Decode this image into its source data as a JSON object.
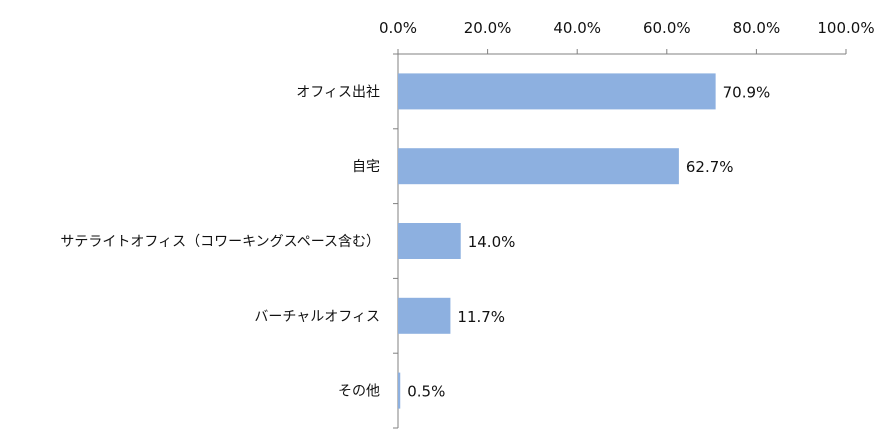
{
  "chart_data": {
    "type": "bar",
    "orientation": "horizontal",
    "categories": [
      "オフィス出社",
      "自宅",
      "サテライトオフィス（コワーキングスペース含む）",
      "バーチャルオフィス",
      "その他"
    ],
    "values": [
      70.9,
      62.7,
      14.0,
      11.7,
      0.5
    ],
    "value_labels": [
      "70.9%",
      "62.7%",
      "14.0%",
      "11.7%",
      "0.5%"
    ],
    "x_ticks": [
      0,
      20,
      40,
      60,
      80,
      100
    ],
    "x_tick_labels": [
      "0.0%",
      "20.0%",
      "40.0%",
      "60.0%",
      "80.0%",
      "100.0%"
    ],
    "xlim": [
      0,
      100
    ],
    "x_axis_position": "top",
    "grid": false,
    "legend": "none",
    "bar_color": "#8db0e0",
    "title": "",
    "xlabel": "",
    "ylabel": ""
  }
}
